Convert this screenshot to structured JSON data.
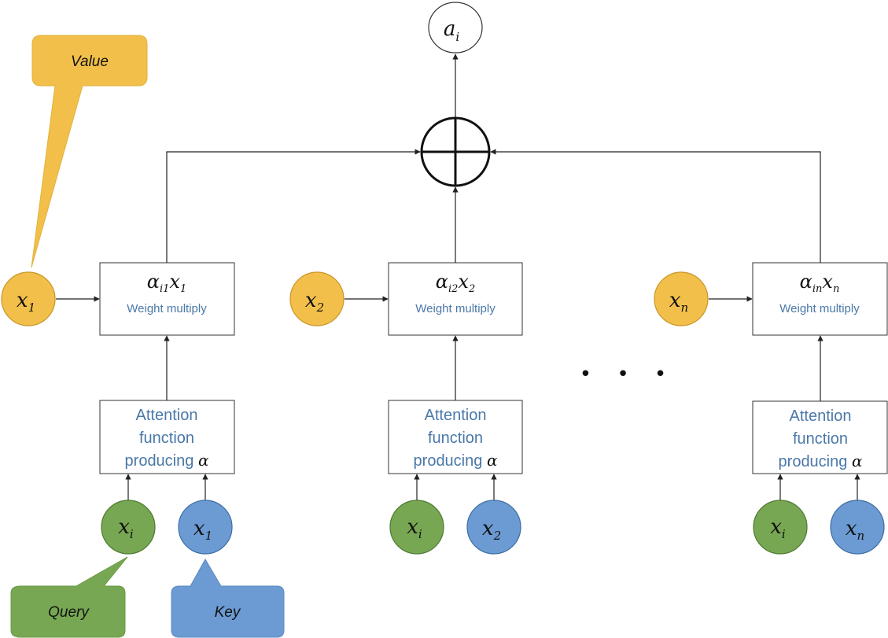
{
  "colors": {
    "value": "#f2c04a",
    "value_stroke": "#c9952a",
    "query": "#77a752",
    "query_stroke": "#4f7a33",
    "key": "#6b9bd2",
    "key_stroke": "#3f6ea3",
    "label_blue": "#4a78a8"
  },
  "output": {
    "base": "a",
    "sub": "i"
  },
  "callouts": {
    "value": "Value",
    "query": "Query",
    "key": "Key"
  },
  "ellipsis": "• • •",
  "columns": [
    {
      "value_node": {
        "base": "x",
        "sub": "1"
      },
      "weight": {
        "alpha_sub": "i1",
        "x_sub": "1",
        "label": "Weight multiply"
      },
      "attention": {
        "line1": "Attention",
        "line2": "function",
        "line3": "producing",
        "alpha": "α"
      },
      "query_node": {
        "base": "x",
        "sub": "i"
      },
      "key_node": {
        "base": "x",
        "sub": "1"
      }
    },
    {
      "value_node": {
        "base": "x",
        "sub": "2"
      },
      "weight": {
        "alpha_sub": "i2",
        "x_sub": "2",
        "label": "Weight multiply"
      },
      "attention": {
        "line1": "Attention",
        "line2": "function",
        "line3": "producing",
        "alpha": "α"
      },
      "query_node": {
        "base": "x",
        "sub": "i"
      },
      "key_node": {
        "base": "x",
        "sub": "2"
      }
    },
    {
      "value_node": {
        "base": "x",
        "sub": "n"
      },
      "weight": {
        "alpha_sub": "in",
        "x_sub": "n",
        "label": "Weight multiply"
      },
      "attention": {
        "line1": "Attention",
        "line2": "function",
        "line3": "producing",
        "alpha": "α"
      },
      "query_node": {
        "base": "x",
        "sub": "i"
      },
      "key_node": {
        "base": "x",
        "sub": "n"
      }
    }
  ]
}
